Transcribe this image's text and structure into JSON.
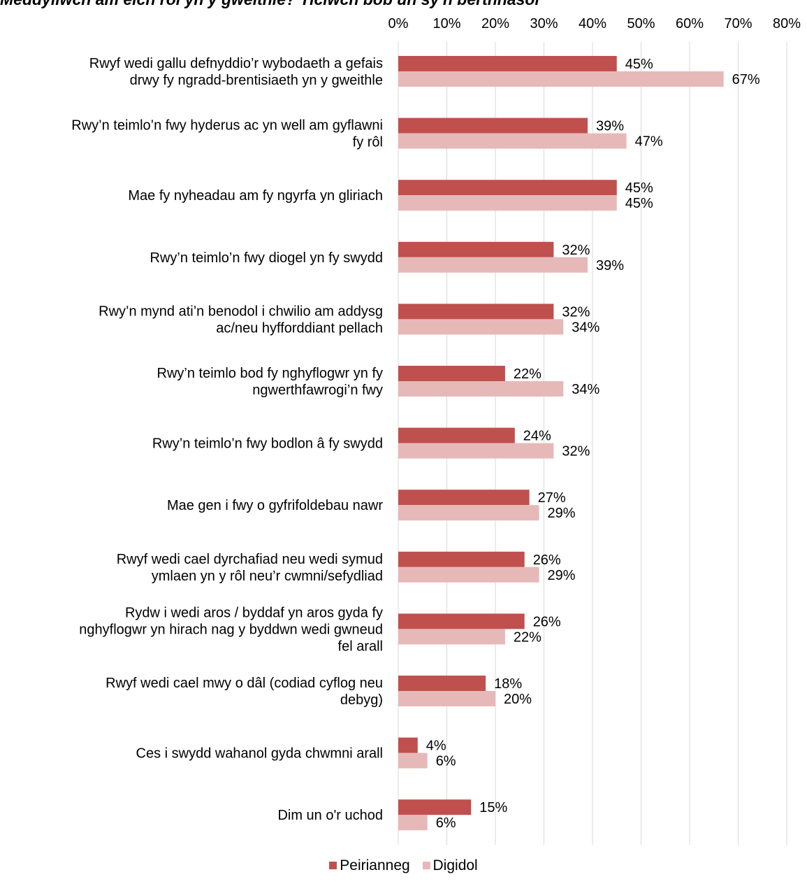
{
  "chart_data": {
    "type": "bar",
    "orientation": "horizontal",
    "title": "Meddyliwch am eich rôl yn y gweithle? Ticiwch bob un sy'n berthnasol",
    "x_ticks": [
      "0%",
      "10%",
      "20%",
      "30%",
      "40%",
      "50%",
      "60%",
      "70%",
      "80%"
    ],
    "xlim": [
      0,
      80
    ],
    "grid": true,
    "legend_position": "bottom",
    "categories": [
      [
        "Rwyf wedi gallu defnyddio’r wybodaeth a gefais",
        "drwy fy ngradd-brentisiaeth yn y gweithle"
      ],
      [
        "Rwy’n teimlo’n fwy hyderus ac yn well am gyflawni",
        "fy rôl"
      ],
      [
        "Mae fy nyheadau am fy ngyrfa yn gliriach"
      ],
      [
        "Rwy’n teimlo’n fwy diogel yn fy swydd"
      ],
      [
        "Rwy’n mynd ati’n benodol i chwilio am addysg",
        "ac/neu hyfforddiant pellach"
      ],
      [
        "Rwy’n teimlo bod fy nghyflogwr yn fy",
        "ngwerthfawrogi’n fwy"
      ],
      [
        "Rwy’n teimlo’n fwy bodlon â fy swydd"
      ],
      [
        "Mae gen i fwy o gyfrifoldebau nawr"
      ],
      [
        "Rwyf wedi cael dyrchafiad neu wedi symud",
        "ymlaen yn y rôl neu’r cwmni/sefydliad"
      ],
      [
        "Rydw i wedi aros / byddaf yn aros gyda fy",
        "nghyflogwr yn hirach nag y byddwn wedi gwneud",
        "fel arall"
      ],
      [
        "Rwyf wedi cael mwy o dâl (codiad cyflog neu",
        "debyg)"
      ],
      [
        "Ces i swydd wahanol gyda chwmni arall"
      ],
      [
        "Dim un o'r uchod"
      ]
    ],
    "series": [
      {
        "name": "Peirianneg",
        "color": "#c0504d",
        "values": [
          45,
          39,
          45,
          32,
          32,
          22,
          24,
          27,
          26,
          26,
          18,
          4,
          15
        ]
      },
      {
        "name": "Digidol",
        "color": "#e6b9b8",
        "values": [
          67,
          47,
          45,
          39,
          34,
          34,
          32,
          29,
          29,
          22,
          20,
          6,
          6
        ]
      }
    ],
    "gridline_color": "#d9d9d9"
  }
}
